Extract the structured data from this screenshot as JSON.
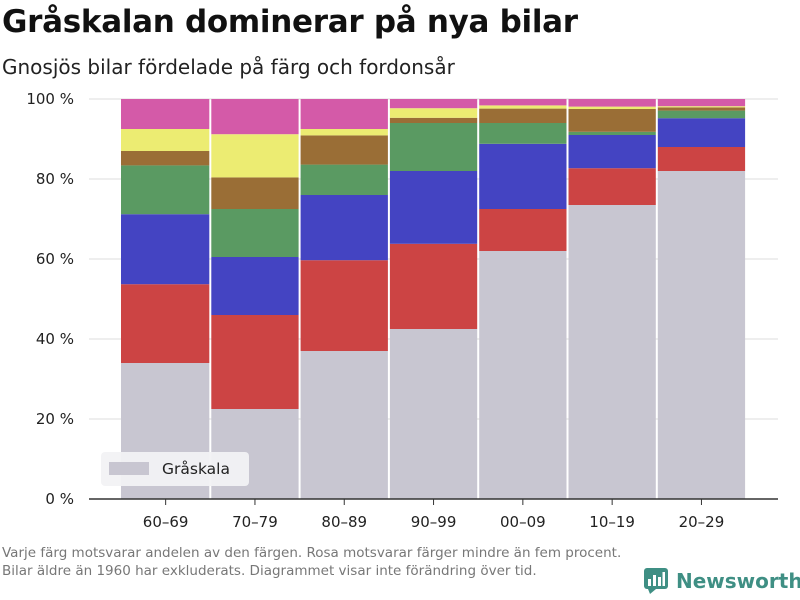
{
  "title": "Gråskalan dominerar på nya bilar",
  "subtitle": "Gnosjös bilar fördelade på färg och fordonsår",
  "footnote": "Varje färg motsvarar andelen av den färgen. Rosa motsvarar färger mindre än fem procent. Bilar äldre än 1960 har exkluderats. Diagrammet visar inte förändring över tid.",
  "brand": {
    "name": "Newsworthy",
    "icon": "bar-chart-logo-icon"
  },
  "chart_data": {
    "type": "bar",
    "stacked": true,
    "categories": [
      "60–69",
      "70–79",
      "80–89",
      "90–99",
      "00–09",
      "10–19",
      "20–29"
    ],
    "ylim": [
      0,
      100
    ],
    "yticks": [
      0,
      20,
      40,
      60,
      80,
      100
    ],
    "ytick_labels": [
      "0 %",
      "20 %",
      "40 %",
      "60 %",
      "80 %",
      "100 %"
    ],
    "grid": true,
    "legend": {
      "placement": "bottom-left",
      "entries": [
        "Gråskala"
      ]
    },
    "series": [
      {
        "name": "Gråskala",
        "color": "#c8c6d1",
        "values": [
          34,
          22.5,
          37,
          42.5,
          62,
          73.5,
          82
        ]
      },
      {
        "color": "#cc4444",
        "values": [
          19.7,
          23.5,
          22.7,
          21.3,
          10.5,
          9.2,
          6
        ]
      },
      {
        "color": "#4444c2",
        "values": [
          17.5,
          14.5,
          16.3,
          18.2,
          16.3,
          8.3,
          7.2
        ]
      },
      {
        "color": "#5a9a62",
        "values": [
          12.2,
          12,
          7.6,
          12,
          5.2,
          0.8,
          1.9
        ]
      },
      {
        "color": "#9a6e36",
        "values": [
          3.6,
          7.9,
          7.3,
          1.3,
          3.6,
          5.7,
          0.8
        ]
      },
      {
        "color": "#ecec72",
        "values": [
          5.5,
          10.8,
          1.6,
          2.4,
          0.8,
          0.6,
          0.3
        ]
      },
      {
        "color": "#d45aa8",
        "values": [
          7.5,
          8.8,
          7.5,
          2.3,
          1.6,
          1.9,
          1.8
        ]
      }
    ]
  }
}
